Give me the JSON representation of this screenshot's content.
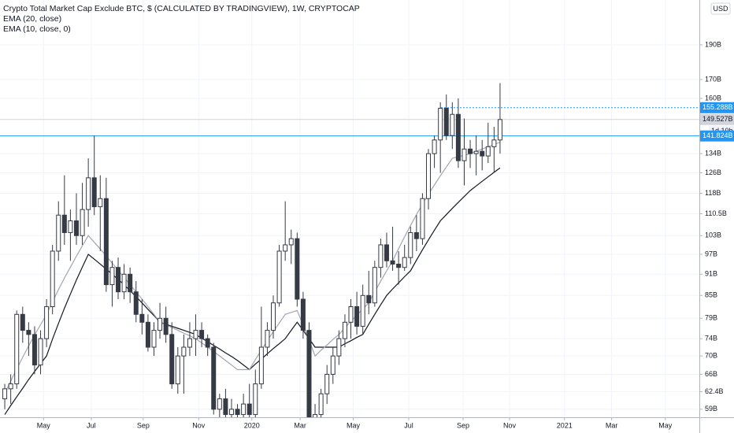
{
  "chart_data": {
    "type": "candlestick",
    "title": "Crypto Total Market Cap Exclude BTC, $ (CALCULATED BY TRADINGVIEW), 1W, CRYPTOCAP",
    "currency": "USD",
    "log_scale": true,
    "grid": true,
    "categories": [
      null,
      null,
      null,
      null,
      null,
      null,
      null,
      null,
      null,
      null,
      null,
      null,
      null,
      null,
      null,
      null,
      null,
      null,
      null,
      null,
      null,
      null,
      null,
      null,
      null,
      null,
      null,
      null,
      null,
      null,
      null,
      null,
      null,
      null,
      null,
      null,
      null,
      null,
      null,
      null,
      null,
      null,
      null,
      null,
      null,
      null,
      null,
      null,
      null,
      null,
      null,
      null,
      null,
      null,
      null,
      null,
      null,
      null,
      null,
      null,
      null,
      null,
      null,
      null,
      null,
      null,
      null,
      null,
      null,
      null,
      null,
      null,
      null,
      null,
      null,
      null,
      null,
      null,
      null,
      null,
      null,
      null,
      null,
      null
    ],
    "xlim": [
      -0.8,
      116.4
    ],
    "xticks": [
      {
        "value": 6.5,
        "label": "May"
      },
      {
        "value": 14.5,
        "label": "Jul"
      },
      {
        "value": 23.2,
        "label": "Sep"
      },
      {
        "value": 32.5,
        "label": "Nov"
      },
      {
        "value": 41.4,
        "label": "2020"
      },
      {
        "value": 49.5,
        "label": "Mar"
      },
      {
        "value": 58.4,
        "label": "May"
      },
      {
        "value": 67.7,
        "label": "Jul"
      },
      {
        "value": 76.8,
        "label": "Sep"
      },
      {
        "value": 84.6,
        "label": "Nov"
      },
      {
        "value": 93.8,
        "label": "2021"
      },
      {
        "value": 101.7,
        "label": "Mar"
      },
      {
        "value": 110.7,
        "label": "May"
      }
    ],
    "ylim": [
      57.5,
      219.4
    ],
    "yticks": [
      {
        "value": 59,
        "label": "59B"
      },
      {
        "value": 62.4,
        "label": "62.4B"
      },
      {
        "value": 66,
        "label": "66B"
      },
      {
        "value": 70,
        "label": "70B"
      },
      {
        "value": 74,
        "label": "74B"
      },
      {
        "value": 79,
        "label": "79B"
      },
      {
        "value": 85,
        "label": "85B"
      },
      {
        "value": 91,
        "label": "91B"
      },
      {
        "value": 97,
        "label": "97B"
      },
      {
        "value": 103,
        "label": "103B"
      },
      {
        "value": 110.5,
        "label": "110.5B"
      },
      {
        "value": 118,
        "label": "118B"
      },
      {
        "value": 126,
        "label": "126B"
      },
      {
        "value": 134,
        "label": "134B"
      },
      {
        "value": 160,
        "label": "160B"
      },
      {
        "value": 170,
        "label": "170B"
      },
      {
        "value": 190,
        "label": "190B"
      }
    ],
    "candles": {
      "up_color": "#ffffff",
      "down_color": "#363a45",
      "edge_color": "#363a45",
      "open": [
        61,
        63,
        64,
        80,
        76,
        75,
        68,
        74,
        82,
        98,
        110,
        104,
        108,
        103,
        112,
        124,
        113,
        116,
        88,
        93,
        86,
        91,
        86,
        80,
        78,
        72,
        76,
        79,
        75,
        64,
        70,
        72,
        74,
        76,
        74,
        72,
        59,
        61,
        58,
        59,
        58,
        60,
        58,
        64,
        72,
        76,
        83,
        98,
        100,
        102,
        84,
        76,
        57,
        58,
        62,
        66,
        70,
        74,
        78,
        82,
        77,
        85,
        83,
        93,
        100,
        95,
        94,
        93,
        96,
        104,
        102,
        116,
        134,
        140,
        155,
        142,
        152,
        131,
        136,
        134,
        135,
        133,
        137,
        140
      ],
      "high": [
        64,
        66,
        81,
        82,
        78,
        77,
        76,
        84,
        100,
        115,
        125,
        112,
        118,
        122,
        132,
        142,
        125,
        124,
        95,
        96,
        94,
        93,
        89,
        84,
        80,
        78,
        83,
        82,
        78,
        72,
        75,
        78,
        80,
        78,
        75,
        73,
        62,
        63,
        61,
        60,
        62,
        64,
        67,
        82,
        78,
        85,
        100,
        115,
        105,
        104,
        86,
        78,
        60,
        63,
        68,
        72,
        76,
        80,
        84,
        86,
        88,
        92,
        95,
        102,
        104,
        106,
        98,
        100,
        106,
        110,
        118,
        136,
        142,
        158,
        162,
        158,
        160,
        150,
        140,
        142,
        140,
        148,
        146,
        168
      ],
      "low": [
        59,
        60,
        63,
        73,
        70,
        66,
        66,
        72,
        80,
        95,
        100,
        95,
        100,
        100,
        106,
        110,
        98,
        86,
        82,
        84,
        84,
        83,
        78,
        75,
        71,
        70,
        74,
        73,
        63,
        62,
        62,
        70,
        70,
        72,
        70,
        58,
        57,
        57,
        57,
        57,
        57,
        57,
        57,
        63,
        70,
        74,
        82,
        95,
        94,
        82,
        74,
        55,
        55,
        57,
        60,
        64,
        68,
        72,
        74,
        75,
        75,
        80,
        82,
        90,
        93,
        92,
        88,
        92,
        94,
        98,
        100,
        112,
        128,
        126,
        140,
        136,
        128,
        121,
        128,
        125,
        127,
        130,
        126,
        134
      ],
      "close": [
        63,
        64,
        80,
        76,
        75,
        68,
        74,
        82,
        98,
        110,
        104,
        108,
        103,
        112,
        124,
        113,
        116,
        88,
        93,
        86,
        91,
        86,
        80,
        78,
        72,
        76,
        79,
        75,
        64,
        70,
        72,
        74,
        76,
        74,
        72,
        59,
        61,
        58,
        59,
        58,
        60,
        58,
        64,
        72,
        76,
        83,
        98,
        100,
        102,
        84,
        76,
        57,
        58,
        62,
        66,
        70,
        74,
        78,
        82,
        77,
        85,
        83,
        93,
        100,
        95,
        94,
        93,
        96,
        104,
        102,
        116,
        134,
        140,
        155,
        142,
        152,
        131,
        136,
        134,
        135,
        133,
        137,
        140,
        149.5
      ]
    },
    "series": [
      {
        "name": "EMA (20, close)",
        "color": "#131722",
        "values": [
          58,
          59.7,
          61.4,
          63.1,
          64.9,
          66.6,
          68.3,
          70,
          73.9,
          77.7,
          81.6,
          85.4,
          89.3,
          93.1,
          97,
          95.5,
          94,
          92.5,
          91,
          89.5,
          88,
          86.3,
          84.7,
          83,
          81.3,
          79.7,
          78,
          77.5,
          77,
          76.5,
          76,
          75.5,
          75,
          74.1,
          73.3,
          72.4,
          71.6,
          70.7,
          69.9,
          69,
          68,
          67,
          68.2,
          69.3,
          70.5,
          71.7,
          72.8,
          74,
          76,
          78,
          76,
          74,
          72,
          72,
          72,
          72,
          72,
          72.8,
          73.5,
          74.3,
          75,
          77.5,
          80,
          82.5,
          85,
          86.8,
          88.5,
          90.3,
          92,
          95.2,
          98.4,
          101.6,
          104.8,
          108,
          110.2,
          112.4,
          114.6,
          116.8,
          119,
          120.8,
          122.6,
          124.4,
          126.2,
          128
        ]
      },
      {
        "name": "EMA (10, close, 0)",
        "color": "#a3a6af",
        "values": [
          62,
          64.6,
          67.1,
          69.7,
          72.3,
          74.9,
          77.4,
          80,
          83.3,
          86.6,
          89.9,
          93.1,
          96.4,
          99.7,
          103,
          100.8,
          98.7,
          96.5,
          94.3,
          92.2,
          90,
          88,
          86,
          84,
          82,
          80,
          78,
          77.3,
          76.7,
          76,
          75.3,
          74.7,
          74,
          73,
          72,
          71,
          70,
          69,
          68,
          67,
          67,
          67,
          69.2,
          71.3,
          73.5,
          75.7,
          77.8,
          80,
          80.5,
          81,
          77.3,
          73.7,
          70,
          71.3,
          72.5,
          73.8,
          75,
          76.6,
          78.2,
          79.8,
          81.4,
          83,
          86,
          89,
          92,
          95,
          98.8,
          102.6,
          106.4,
          110.2,
          114,
          117.6,
          121.2,
          124.8,
          128.4,
          132,
          132.7,
          133.3,
          134,
          135,
          136,
          137,
          138,
          139
        ]
      }
    ],
    "price_lines": [
      {
        "value": 155.288,
        "label": "155.288B",
        "color": "#2196f3",
        "style": "dotted"
      },
      {
        "value": 149.527,
        "label": "149.527B",
        "color": "#d1d4dc",
        "style": "solid",
        "countdown": "1d 10h"
      },
      {
        "value": 141.824,
        "label": "141.824B",
        "color": "#2196f3",
        "style": "solid"
      }
    ]
  }
}
